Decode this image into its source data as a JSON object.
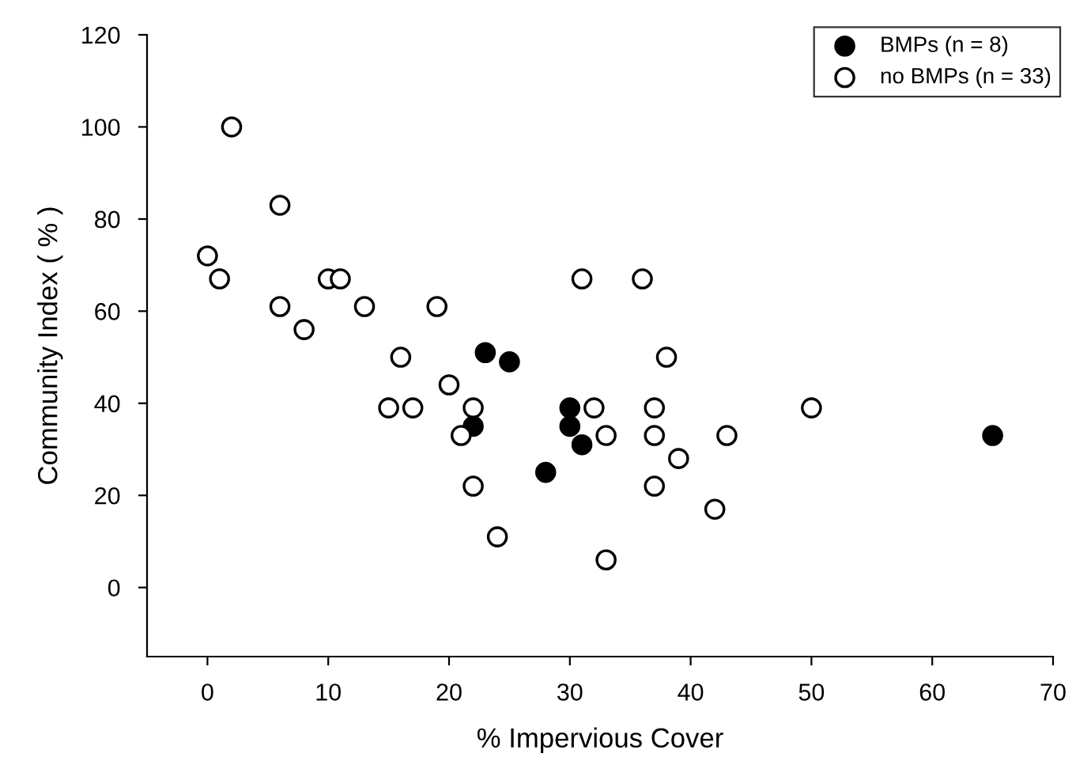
{
  "chart_data": {
    "type": "scatter",
    "xlabel": "% Impervious Cover",
    "ylabel": "Community Index ( % )",
    "xlim": [
      -5,
      70
    ],
    "xticks": [
      0,
      10,
      20,
      30,
      40,
      50,
      60,
      70
    ],
    "ylim": [
      -15,
      120
    ],
    "yticks": [
      0,
      20,
      40,
      60,
      80,
      100,
      120
    ],
    "grid": false,
    "legend": "top right",
    "marker": "circle",
    "series": [
      {
        "name": "BMPs (n = 8)",
        "color": "#000000",
        "x": [
          22,
          23,
          25,
          28,
          30,
          30,
          31,
          65
        ],
        "values": [
          35,
          51,
          49,
          25,
          39,
          35,
          31,
          33
        ]
      },
      {
        "name": "no BMPs (n = 33)",
        "color": "#ffffff",
        "x": [
          0,
          1,
          2,
          6,
          6,
          8,
          10,
          11,
          13,
          15,
          16,
          17,
          19,
          20,
          21,
          22,
          22,
          24,
          31,
          32,
          33,
          33,
          36,
          37,
          37,
          37,
          38,
          39,
          42,
          43,
          50
        ],
        "values": [
          72,
          67,
          100,
          83,
          61,
          56,
          67,
          67,
          61,
          39,
          50,
          39,
          61,
          44,
          33,
          39,
          22,
          11,
          67,
          39,
          33,
          6,
          67,
          39,
          33,
          22,
          50,
          28,
          17,
          33,
          39
        ]
      }
    ]
  }
}
